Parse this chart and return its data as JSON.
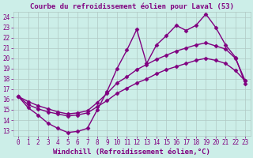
{
  "title": "Courbe du refroidissement éolien pour Laval (53)",
  "xlabel": "Windchill (Refroidissement éolien,°C)",
  "bg_color": "#cceee8",
  "line_color": "#800080",
  "grid_color": "#b0c8c4",
  "xlim": [
    -0.5,
    23.5
  ],
  "ylim": [
    12.5,
    24.5
  ],
  "yticks": [
    13,
    14,
    15,
    16,
    17,
    18,
    19,
    20,
    21,
    22,
    23,
    24
  ],
  "xticks": [
    0,
    1,
    2,
    3,
    4,
    5,
    6,
    7,
    8,
    9,
    10,
    11,
    12,
    13,
    14,
    15,
    16,
    17,
    18,
    19,
    20,
    21,
    22,
    23
  ],
  "series": [
    {
      "x": [
        0,
        1,
        2,
        3,
        4,
        5,
        6,
        7,
        8,
        9,
        10,
        11,
        12,
        13,
        14,
        15,
        16,
        17,
        18,
        19,
        20,
        21,
        22,
        23
      ],
      "y": [
        16.3,
        15.2,
        14.5,
        13.7,
        13.2,
        12.8,
        12.9,
        13.2,
        15.0,
        16.8,
        19.0,
        20.8,
        22.8,
        19.5,
        21.3,
        22.2,
        23.2,
        22.7,
        23.2,
        24.3,
        23.0,
        21.3,
        20.1,
        17.5
      ]
    },
    {
      "x": [
        0,
        1,
        2,
        3,
        4,
        5,
        6,
        7,
        8,
        9,
        10,
        11,
        12,
        13,
        14,
        15,
        16,
        17,
        18,
        19,
        20,
        21,
        22,
        23
      ],
      "y": [
        16.3,
        15.8,
        15.4,
        15.1,
        14.8,
        14.6,
        14.7,
        14.9,
        15.7,
        16.6,
        17.6,
        18.2,
        18.9,
        19.4,
        19.9,
        20.3,
        20.7,
        21.0,
        21.3,
        21.5,
        21.2,
        20.9,
        20.0,
        17.8
      ]
    },
    {
      "x": [
        0,
        1,
        2,
        3,
        4,
        5,
        6,
        7,
        8,
        9,
        10,
        11,
        12,
        13,
        14,
        15,
        16,
        17,
        18,
        19,
        20,
        21,
        22,
        23
      ],
      "y": [
        16.3,
        15.5,
        15.1,
        14.8,
        14.6,
        14.4,
        14.5,
        14.7,
        15.3,
        15.9,
        16.6,
        17.1,
        17.6,
        18.0,
        18.5,
        18.9,
        19.2,
        19.5,
        19.8,
        20.0,
        19.8,
        19.5,
        18.8,
        17.8
      ]
    }
  ],
  "tick_color": "#800080",
  "tick_fontsize": 5.5,
  "title_fontsize": 6.5,
  "xlabel_fontsize": 6.5,
  "marker": "D",
  "markersize": 2.5,
  "linewidth": 1.0
}
